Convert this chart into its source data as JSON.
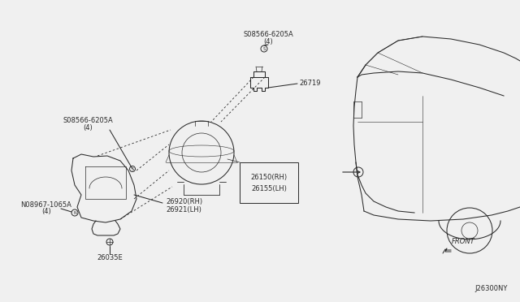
{
  "bg_color": "#f0f0f0",
  "fg_color": "#2a2a2a",
  "diagram_code": "J26300NY",
  "front_label": "FRONT",
  "label_fontsize": 6.0,
  "lw": 0.75,
  "screw_label": "S08566-6205A",
  "screw_qty": "(4)",
  "nut_label": "N08967-1065A",
  "nut_qty": "(4)",
  "socket_label": "26719",
  "lamp_label1": "26150(RH)",
  "lamp_label2": "26155(LH)",
  "bracket_label1": "26920(RH)",
  "bracket_label2": "26921(LH)",
  "bolt_label": "26035E"
}
